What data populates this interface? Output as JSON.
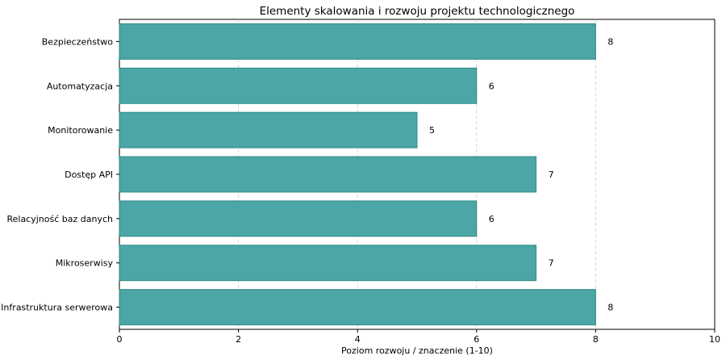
{
  "chart_data": {
    "type": "bar",
    "orientation": "horizontal",
    "title": "Elementy skalowania i rozwoju projektu technologicznego",
    "xlabel": "Poziom rozwoju / znaczenie (1-10)",
    "ylabel": "",
    "categories": [
      "Bezpieczeństwo",
      "Automatyzacja",
      "Monitorowanie",
      "Dostęp API",
      "Relacyjność baz danych",
      "Mikroserwisy",
      "Infrastruktura serwerowa"
    ],
    "values": [
      8,
      6,
      5,
      7,
      6,
      7,
      8
    ],
    "xlim": [
      0,
      10
    ],
    "xticks": [
      "0",
      "2",
      "4",
      "6",
      "8",
      "10"
    ],
    "grid": "vertical-dashed",
    "bar_color": "#4ca6a6",
    "bar_edge_color": "#2e8b85"
  }
}
